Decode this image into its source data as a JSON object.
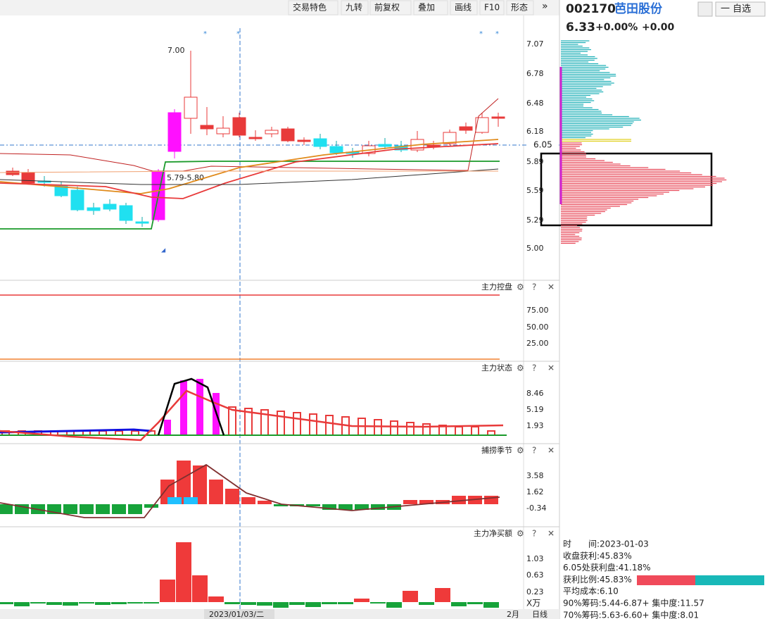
{
  "toolbar": [
    "交易特色",
    "九转",
    "前复权",
    "叠加",
    "画线",
    "F10",
    "形态"
  ],
  "main": {
    "ticks": [
      "7.07",
      "6.78",
      "6.48",
      "6.18",
      "5.89",
      "5.59",
      "5.29",
      "5.00"
    ],
    "price_marker": "6.05",
    "high_label": "7.00",
    "range_label": "5.79-5.80"
  },
  "panels": [
    {
      "title": "主力控盘",
      "ticks": [
        "75.00",
        "50.00",
        "25.00"
      ]
    },
    {
      "title": "主力状态",
      "ticks": [
        "8.46",
        "5.19",
        "1.93"
      ]
    },
    {
      "title": "捕捞季节",
      "ticks": [
        "3.58",
        "1.62",
        "-0.34"
      ]
    },
    {
      "title": "主力净买额",
      "ticks": [
        "1.03",
        "0.63",
        "0.23"
      ],
      "unit": "X万"
    }
  ],
  "bottom": {
    "date": "2023/01/03/二",
    "month": "2月",
    "period": "日线"
  },
  "stock": {
    "code": "002170",
    "name": "芭田股份",
    "price": "6.33",
    "change_pct": "+0.00%",
    "change": "+0.00",
    "watch": "一 自选"
  },
  "info": [
    "时　　间:2023-01-03",
    "收盘获利:45.83%",
    "6.05处获利盘:41.18%",
    "获利比例:45.83%",
    "平均成本:6.10",
    "90%筹码:5.44-6.87+ 集中度:11.57",
    "70%筹码:5.63-6.60+ 集中度:8.01"
  ]
}
